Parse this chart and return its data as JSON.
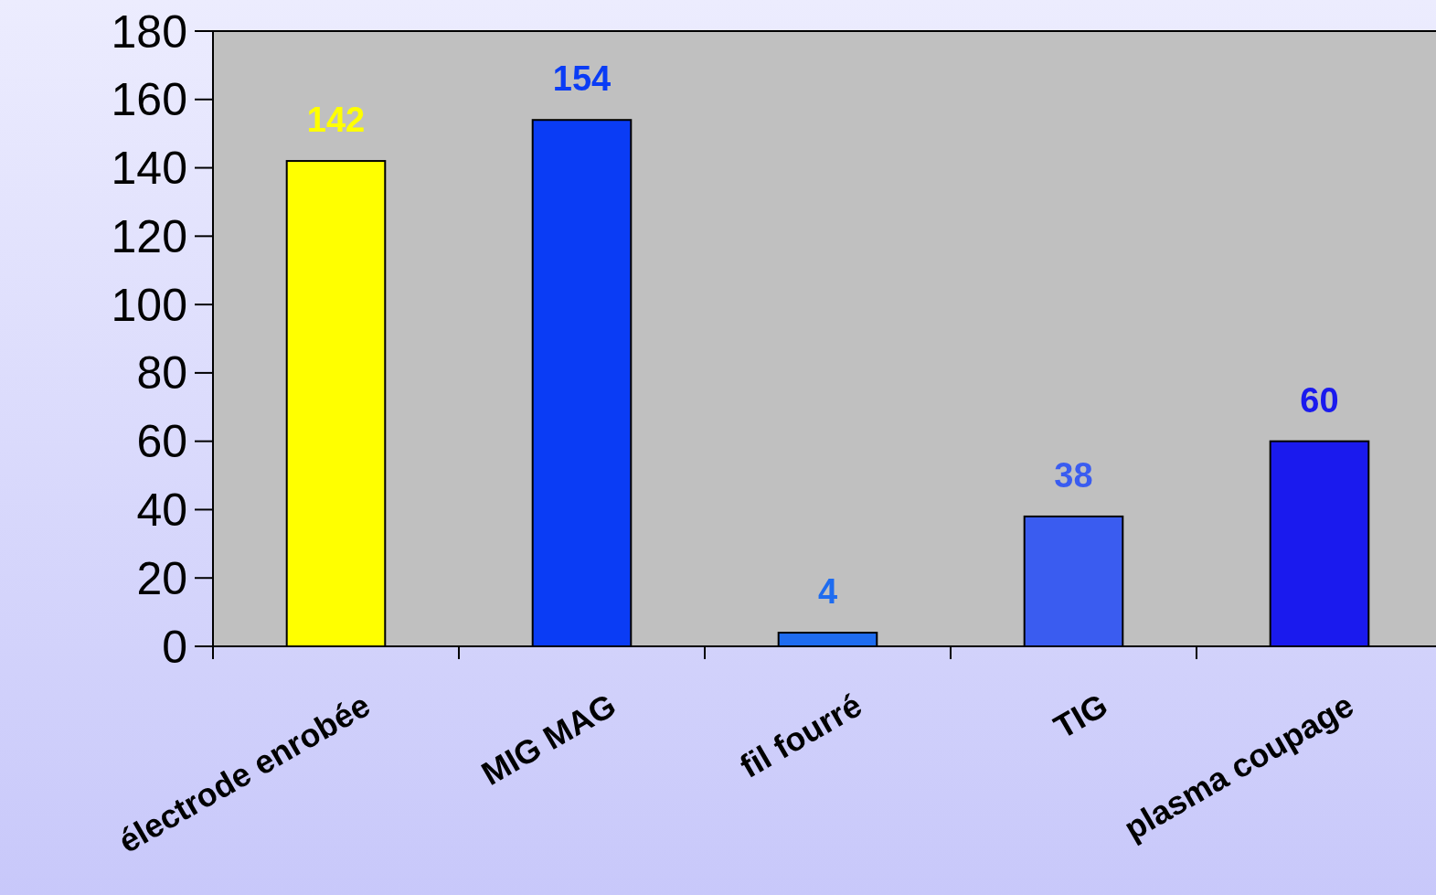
{
  "chart_data": {
    "type": "bar",
    "categories": [
      "électrode enrobée",
      "MIG MAG",
      "fil fourré",
      "TIG",
      "plasma coupage"
    ],
    "values": [
      142,
      154,
      4,
      38,
      60
    ],
    "colors": [
      "#ffff00",
      "#0a3cf5",
      "#1e6cf0",
      "#3a5cf0",
      "#1a1aee"
    ],
    "ylim": [
      0,
      180
    ],
    "yticks": [
      0,
      20,
      40,
      60,
      80,
      100,
      120,
      140,
      160,
      180
    ],
    "grid": false,
    "data_labels": true
  }
}
